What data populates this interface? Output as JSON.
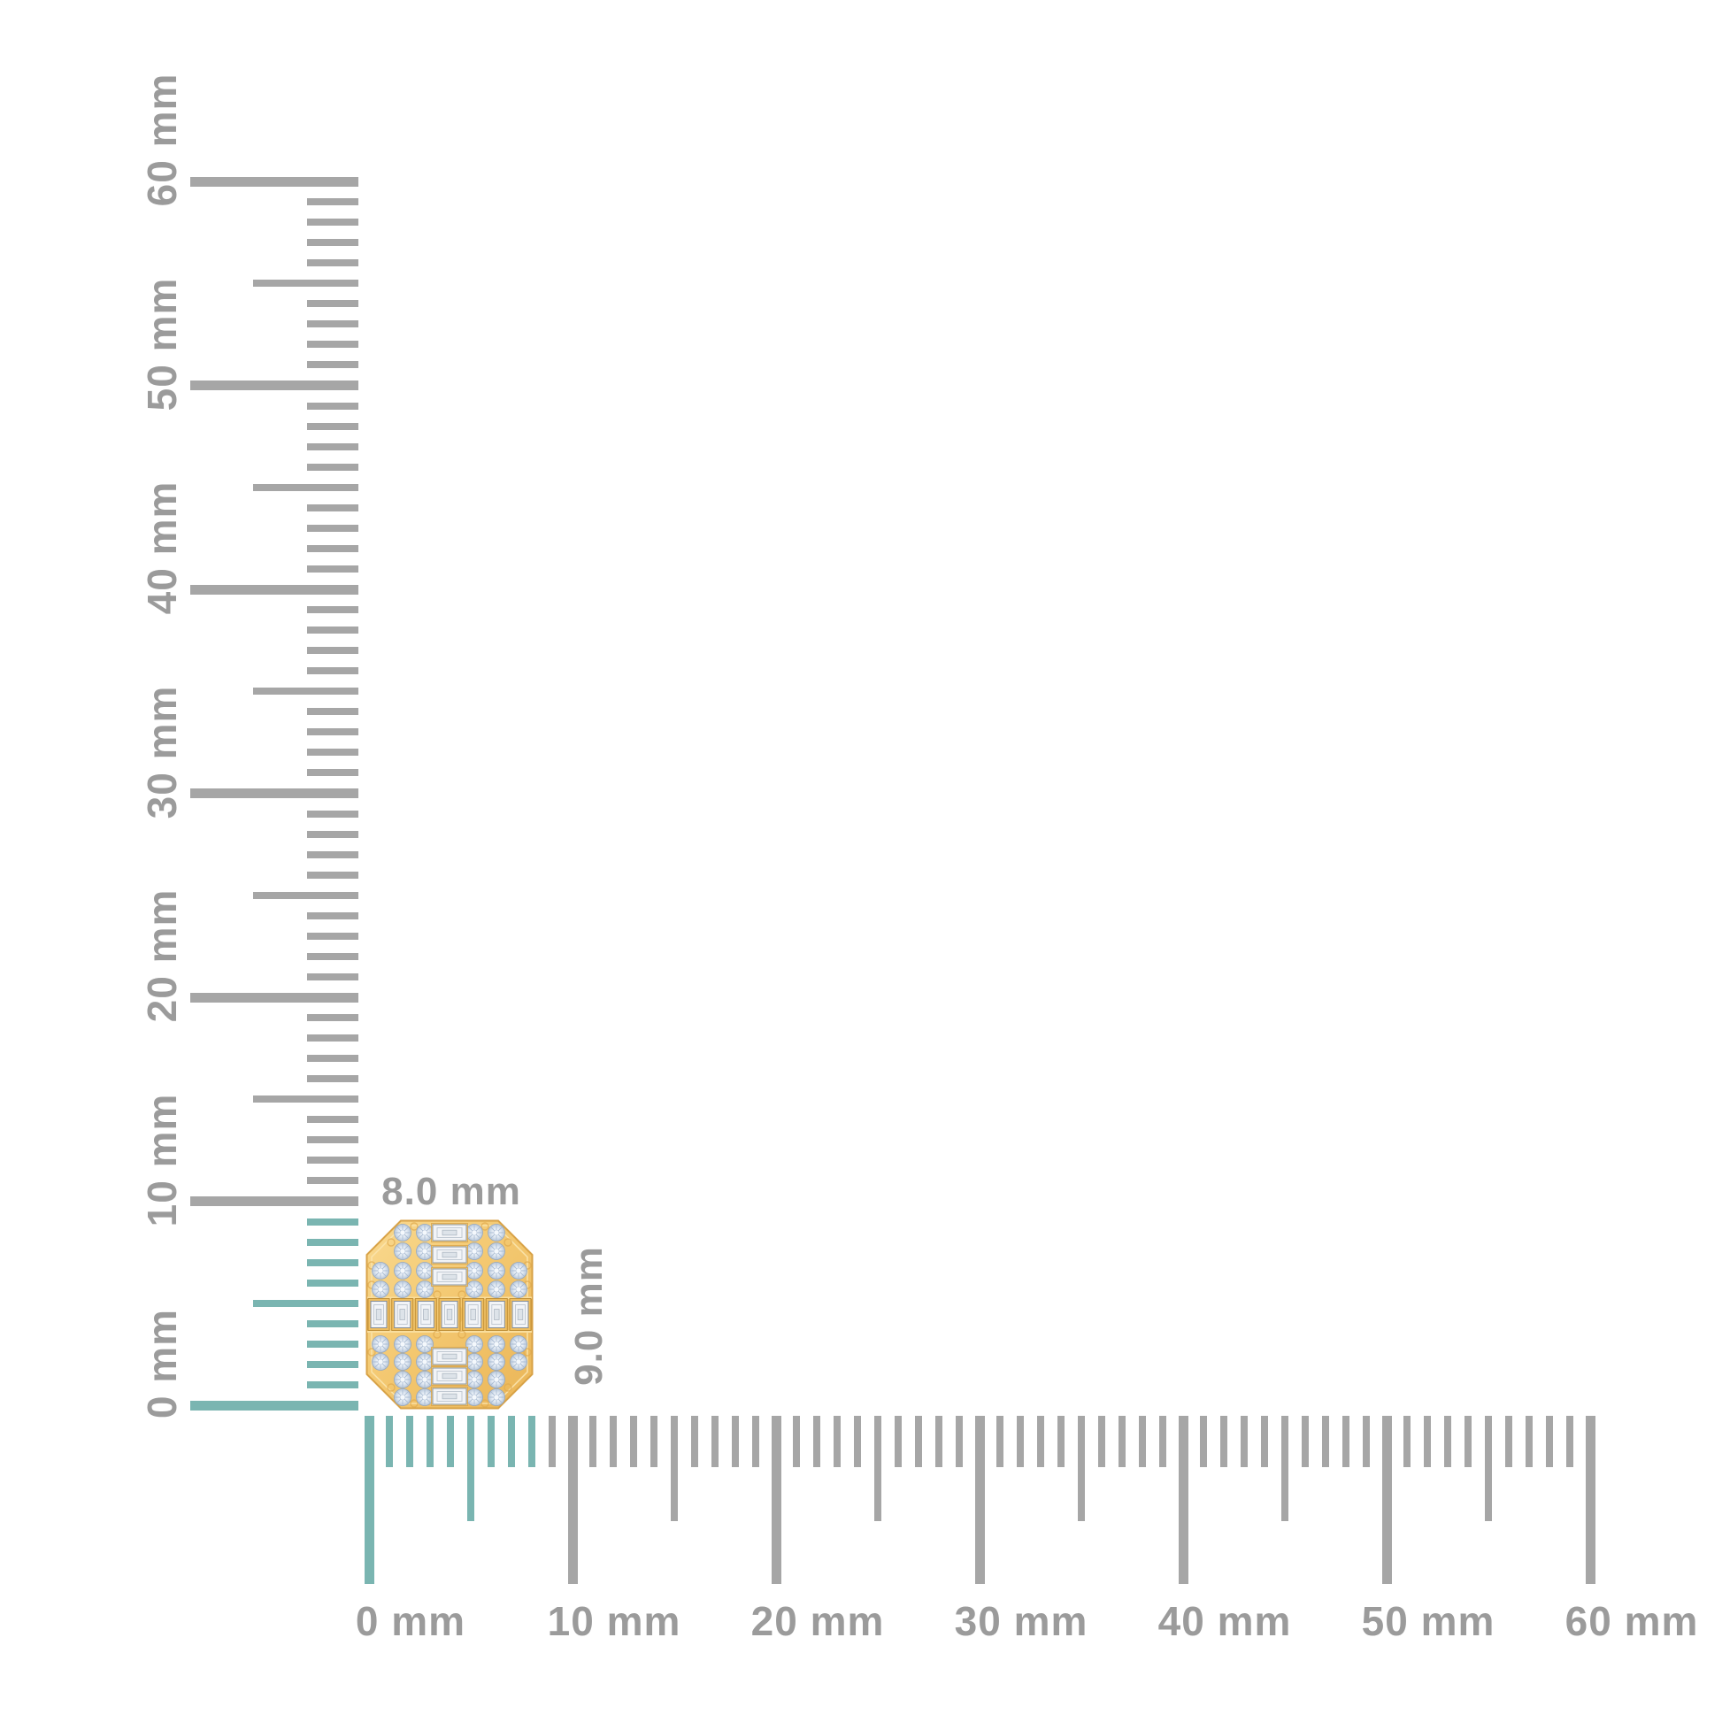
{
  "page": {
    "background_color": "#FFFFFF",
    "description": "Jewelry size reference image: octagonal diamond cluster stud shown against vertical and horizontal millimeter rulers"
  },
  "product": {
    "name": "octagonal diamond cluster stud in yellow gold with round and baguette diamonds",
    "width_label": "8.0 mm",
    "height_label": "9.0 mm",
    "gold_color": "#F3C76F",
    "gold_edge_color": "#D8A246",
    "diamond_color": "#E6EDF5",
    "diamond_facet_color": "#A9BBD2"
  },
  "rulers": {
    "unit": "mm",
    "tick_gray": "#A6A6A6",
    "highlight_teal": "#7AB5B1",
    "label_color": "#9B9B9B",
    "vertical": {
      "labels": [
        "0 mm",
        "10 mm",
        "20 mm",
        "30 mm",
        "40 mm",
        "50 mm",
        "60 mm"
      ],
      "min_mm": 0,
      "max_mm": 60,
      "minor_step_mm": 1,
      "medium_step_mm": 5,
      "major_step_mm": 10,
      "highlight_from_mm": 0,
      "highlight_to_mm": 9
    },
    "horizontal": {
      "labels": [
        "0 mm",
        "10 mm",
        "20 mm",
        "30 mm",
        "40 mm",
        "50 mm",
        "60 mm"
      ],
      "min_mm": 0,
      "max_mm": 60,
      "minor_step_mm": 1,
      "medium_step_mm": 5,
      "major_step_mm": 10,
      "highlight_from_mm": 0,
      "highlight_to_mm": 8
    }
  }
}
